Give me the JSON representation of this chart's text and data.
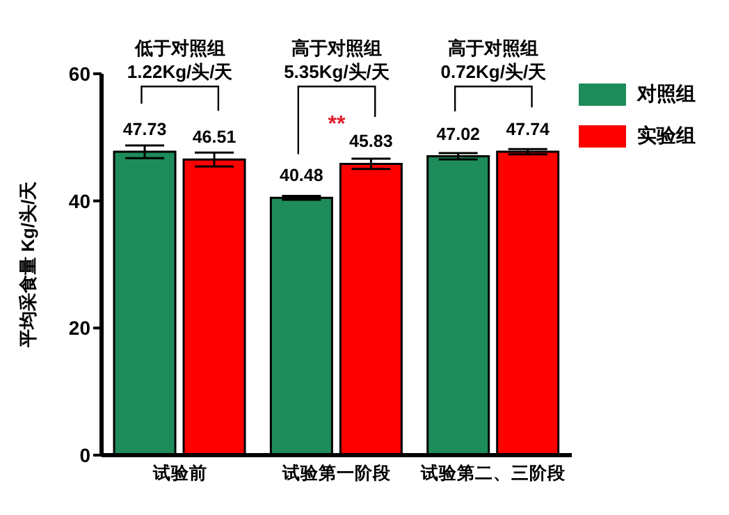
{
  "chart_data": {
    "type": "bar",
    "ylabel": "平均采食量  Kg/头/天",
    "categories": [
      "试验前",
      "试验第一阶段",
      "试验第二、三阶段"
    ],
    "series": [
      {
        "name": "对照组",
        "color": "#1e8c5a",
        "values": [
          47.73,
          40.48,
          47.02
        ],
        "errors": [
          1.0,
          0.3,
          0.5
        ]
      },
      {
        "name": "实验组",
        "color": "#ff0000",
        "values": [
          46.51,
          45.83,
          47.74
        ],
        "errors": [
          1.1,
          0.8,
          0.4
        ]
      }
    ],
    "ylim": [
      0,
      60
    ],
    "yticks": [
      0,
      20,
      40,
      60
    ],
    "data_labels": true,
    "legend": "top right",
    "grid": false,
    "annotations": [
      "低于对照组\n1.22Kg/头/天",
      "高于对照组\n5.35Kg/头/天",
      "**",
      "高于对照组\n0.72Kg/头/天"
    ]
  }
}
